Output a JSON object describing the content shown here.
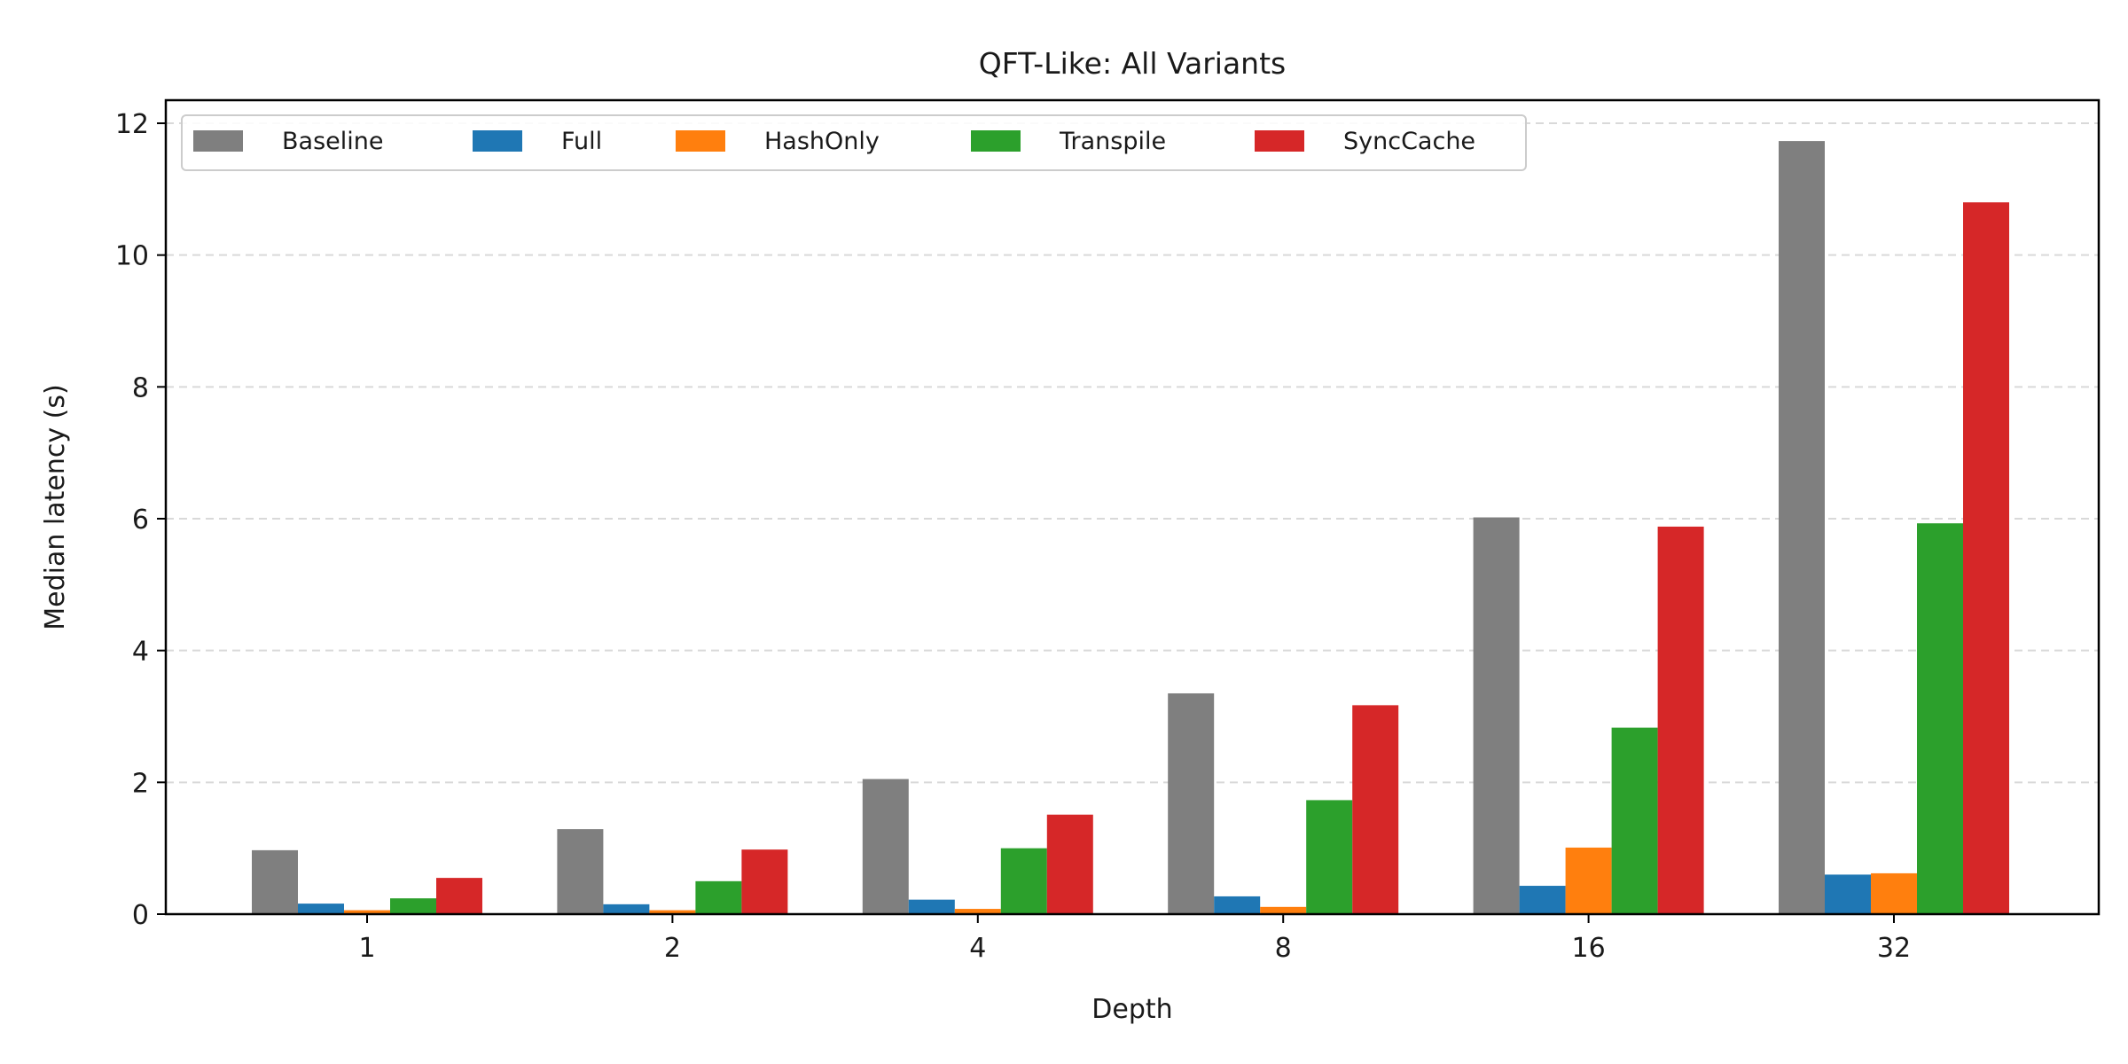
{
  "chart_data": {
    "type": "bar",
    "title": "QFT-Like: All Variants",
    "xlabel": "Depth",
    "ylabel": "Median latency (s)",
    "categories": [
      "1",
      "2",
      "4",
      "8",
      "16",
      "32"
    ],
    "ylim": [
      0,
      12.35
    ],
    "yticks": [
      "0",
      "2",
      "4",
      "6",
      "8",
      "10",
      "12"
    ],
    "grid": "y-dashed",
    "legend_position": "top-left",
    "series": [
      {
        "name": "Baseline",
        "color": "#7f7f7f",
        "values": [
          0.97,
          1.29,
          2.05,
          3.35,
          6.02,
          11.73
        ]
      },
      {
        "name": "Full",
        "color": "#1f77b4",
        "values": [
          0.16,
          0.15,
          0.22,
          0.27,
          0.43,
          0.6
        ]
      },
      {
        "name": "HashOnly",
        "color": "#ff7f0e",
        "values": [
          0.06,
          0.06,
          0.08,
          0.11,
          1.01,
          0.62
        ]
      },
      {
        "name": "Transpile",
        "color": "#2ca02c",
        "values": [
          0.24,
          0.5,
          1.0,
          1.73,
          2.83,
          5.93
        ]
      },
      {
        "name": "SyncCache",
        "color": "#d62728",
        "values": [
          0.55,
          0.98,
          1.51,
          3.17,
          5.88,
          10.8
        ]
      }
    ]
  }
}
